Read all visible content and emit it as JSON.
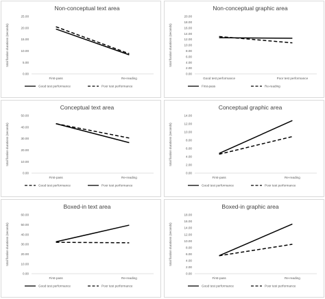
{
  "chart_data": [
    {
      "type": "line",
      "title": "Non-conceptual text area",
      "ylabel": "total fixation durations (seconds)",
      "categories": [
        "First-pass",
        "Re-reading"
      ],
      "ylim": [
        0,
        25
      ],
      "yticks": [
        "0.00",
        "5.00",
        "10.00",
        "15.00",
        "20.00",
        "25.00"
      ],
      "yticks_values": [
        0,
        5,
        10,
        15,
        20,
        25
      ],
      "series": [
        {
          "name": "Good test performance",
          "dash": "solid",
          "values": [
            19.5,
            8.3
          ]
        },
        {
          "name": "Poor test performance",
          "dash": "dashed",
          "values": [
            20.5,
            8.8
          ]
        }
      ],
      "legend": "bottom"
    },
    {
      "type": "line",
      "title": "Non-conceptual graphic area",
      "ylabel": "total fixation durations (seconds)",
      "categories": [
        "Good test performance",
        "Poor test performance"
      ],
      "ylim": [
        0,
        20
      ],
      "yticks": [
        "0.00",
        "2.00",
        "4.00",
        "6.00",
        "8.00",
        "10.00",
        "12.00",
        "14.00",
        "16.00",
        "18.00",
        "20.00"
      ],
      "yticks_values": [
        0,
        2,
        4,
        6,
        8,
        10,
        12,
        14,
        16,
        18,
        20
      ],
      "series": [
        {
          "name": "First-pass",
          "dash": "solid",
          "values": [
            12.6,
            12.4
          ]
        },
        {
          "name": "Re-reading",
          "dash": "dashed",
          "values": [
            13.0,
            10.8
          ]
        }
      ],
      "legend": "bottom"
    },
    {
      "type": "line",
      "title": "Conceptual text area",
      "ylabel": "total fixation durations (seconds)",
      "categories": [
        "First-pass",
        "Re-reading"
      ],
      "ylim": [
        0,
        50
      ],
      "yticks": [
        "0.00",
        "10.00",
        "20.00",
        "30.00",
        "40.00",
        "50.00"
      ],
      "yticks_values": [
        0,
        10,
        20,
        30,
        40,
        50
      ],
      "series": [
        {
          "name": "Good test performance",
          "dash": "dashed",
          "values": [
            43.0,
            30.5
          ]
        },
        {
          "name": "Poor test performance",
          "dash": "solid",
          "values": [
            43.0,
            26.5
          ]
        }
      ],
      "legend": "bottom"
    },
    {
      "type": "line",
      "title": "Conceptual graphic area",
      "ylabel": "total fixation durations (seconds)",
      "categories": [
        "First-pass",
        "Re-reading"
      ],
      "ylim": [
        0,
        14
      ],
      "yticks": [
        "0.00",
        "2.00",
        "4.00",
        "6.00",
        "8.00",
        "10.00",
        "12.00",
        "14.00"
      ],
      "yticks_values": [
        0,
        2,
        4,
        6,
        8,
        10,
        12,
        14
      ],
      "series": [
        {
          "name": "Good test performance",
          "dash": "solid",
          "values": [
            4.8,
            12.8
          ]
        },
        {
          "name": "Poor test performance",
          "dash": "dashed",
          "values": [
            4.6,
            8.9
          ]
        }
      ],
      "legend": "bottom"
    },
    {
      "type": "line",
      "title": "Boxed-in text area",
      "ylabel": "total fixation durations (seconds)",
      "categories": [
        "First-pass",
        "Re-reading"
      ],
      "ylim": [
        0,
        60
      ],
      "yticks": [
        "0.00",
        "10.00",
        "20.00",
        "30.00",
        "40.00",
        "50.00",
        "60.00"
      ],
      "yticks_values": [
        0,
        10,
        20,
        30,
        40,
        50,
        60
      ],
      "series": [
        {
          "name": "Good test performance",
          "dash": "solid",
          "values": [
            32.5,
            49.5
          ]
        },
        {
          "name": "Poor test performance",
          "dash": "dashed",
          "values": [
            32.0,
            31.5
          ]
        }
      ],
      "legend": "bottom"
    },
    {
      "type": "line",
      "title": "Boxed-in graphic area",
      "ylabel": "total fixation durations (seconds)",
      "categories": [
        "First-pass",
        "Re-reading"
      ],
      "ylim": [
        0,
        18
      ],
      "yticks": [
        "0.00",
        "2.00",
        "4.00",
        "6.00",
        "8.00",
        "10.00",
        "12.00",
        "14.00",
        "16.00",
        "18.00"
      ],
      "yticks_values": [
        0,
        2,
        4,
        6,
        8,
        10,
        12,
        14,
        16,
        18
      ],
      "series": [
        {
          "name": "Good test performance",
          "dash": "solid",
          "values": [
            5.5,
            15.2
          ]
        },
        {
          "name": "Poor test performance",
          "dash": "dashed",
          "values": [
            5.5,
            9.0
          ]
        }
      ],
      "legend": "bottom"
    }
  ]
}
